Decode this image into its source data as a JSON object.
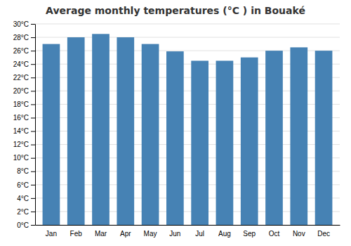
{
  "chart_data": {
    "type": "bar",
    "title": "Average monthly temperatures (°C ) in Bouaké",
    "categories": [
      "Jan",
      "Feb",
      "Mar",
      "Apr",
      "May",
      "Jun",
      "Jul",
      "Aug",
      "Sep",
      "Oct",
      "Nov",
      "Dec"
    ],
    "values": [
      27.0,
      28.0,
      28.5,
      28.0,
      27.0,
      25.9,
      24.5,
      24.5,
      25.0,
      26.0,
      26.5,
      26.0
    ],
    "ylim": [
      0,
      30
    ],
    "yticks": [
      {
        "value": 0,
        "label": "0°C"
      },
      {
        "value": 2,
        "label": "2°C"
      },
      {
        "value": 4,
        "label": "4°C"
      },
      {
        "value": 6,
        "label": "6°C"
      },
      {
        "value": 8,
        "label": "8°C"
      },
      {
        "value": 10,
        "label": "10°C"
      },
      {
        "value": 12,
        "label": "12°C"
      },
      {
        "value": 14,
        "label": "14°C"
      },
      {
        "value": 16,
        "label": "16°C"
      },
      {
        "value": 18,
        "label": "18°C"
      },
      {
        "value": 20,
        "label": "20°C"
      },
      {
        "value": 22,
        "label": "22°C"
      },
      {
        "value": 24,
        "label": "24°C"
      },
      {
        "value": 26,
        "label": "26°C"
      },
      {
        "value": 28,
        "label": "28°C"
      },
      {
        "value": 30,
        "label": "30°C"
      }
    ],
    "grid": true
  }
}
